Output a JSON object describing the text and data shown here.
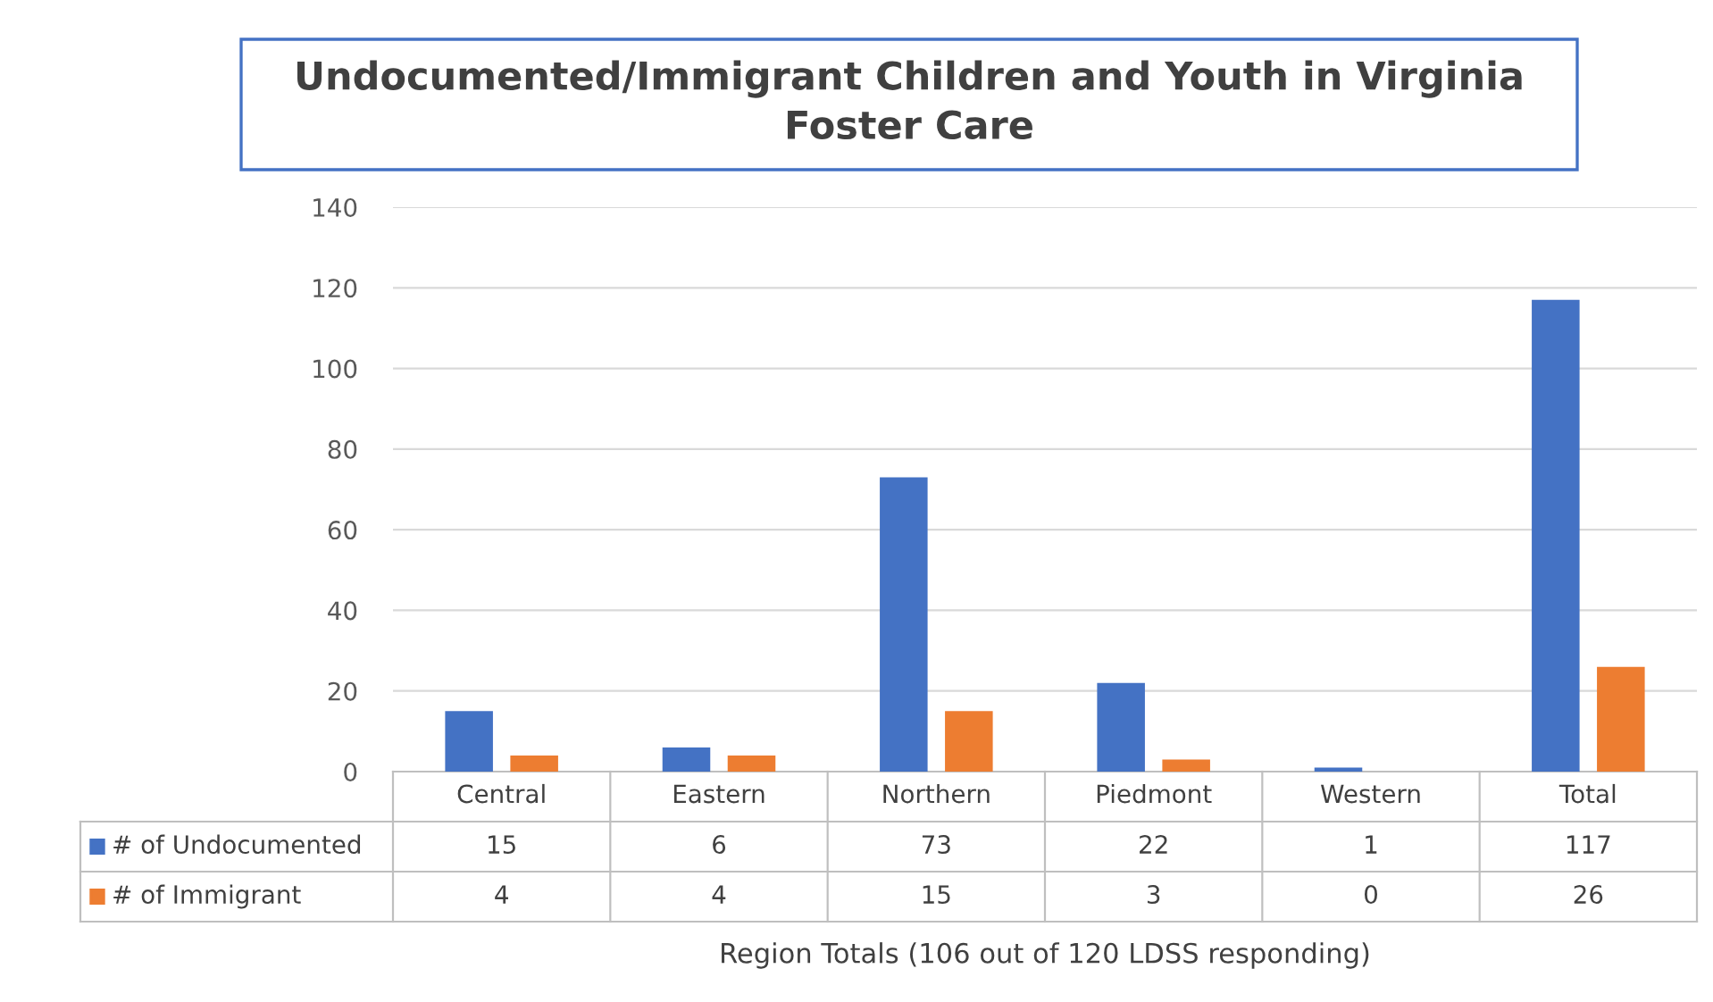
{
  "chart_data": {
    "type": "bar",
    "title": "Undocumented/Immigrant Children and Youth in Virginia Foster Care",
    "annotations": [
      "Region Totals (106 out of 120 LDSS responding)"
    ],
    "categories": [
      "Central",
      "Eastern",
      "Northern",
      "Piedmont",
      "Western",
      "Total"
    ],
    "series": [
      {
        "name": "# of Undocumented",
        "color": "#4472c4",
        "values": [
          15,
          6,
          73,
          22,
          1,
          117
        ]
      },
      {
        "name": "# of Immigrant",
        "color": "#ed7d31",
        "values": [
          4,
          4,
          15,
          3,
          0,
          26
        ]
      }
    ],
    "ylim": [
      0,
      140
    ],
    "yticks": [
      0,
      20,
      40,
      60,
      80,
      100,
      120,
      140
    ],
    "grid": "y",
    "legend": "bottom left",
    "data_labels": true
  }
}
